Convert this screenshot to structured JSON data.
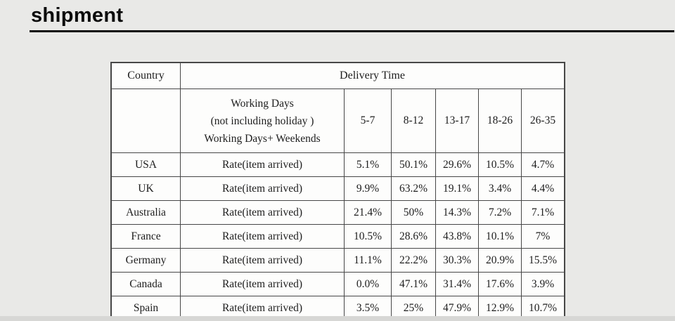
{
  "page": {
    "title": "shipment"
  },
  "table": {
    "col_headers": {
      "country": "Country",
      "delivery_time": "Delivery Time"
    },
    "working_days_lines": [
      "Working Days",
      "(not including holiday )",
      "Working Days+ Weekends"
    ],
    "day_ranges": [
      "5-7",
      "8-12",
      "13-17",
      "18-26",
      "26-35"
    ],
    "rate_label": "Rate(item arrived)",
    "rows": [
      {
        "country": "USA",
        "label": "Rate(item arrived)",
        "rates": [
          "5.1%",
          "50.1%",
          "29.6%",
          "10.5%",
          "4.7%"
        ]
      },
      {
        "country": "UK",
        "label": "Rate(item arrived)",
        "rates": [
          "9.9%",
          "63.2%",
          "19.1%",
          "3.4%",
          "4.4%"
        ]
      },
      {
        "country": "Australia",
        "label": "Rate(item arrived)",
        "rates": [
          "21.4%",
          "50%",
          "14.3%",
          "7.2%",
          "7.1%"
        ]
      },
      {
        "country": "France",
        "label": "Rate(item arrived)",
        "rates": [
          "10.5%",
          "28.6%",
          "43.8%",
          "10.1%",
          "7%"
        ]
      },
      {
        "country": "Germany",
        "label": "Rate(item arrived)",
        "rates": [
          "11.1%",
          "22.2%",
          "30.3%",
          "20.9%",
          "15.5%"
        ]
      },
      {
        "country": "Canada",
        "label": "Rate(item arrived)",
        "rates": [
          "0.0%",
          "47.1%",
          "31.4%",
          "17.6%",
          "3.9%"
        ]
      },
      {
        "country": "Spain",
        "label": "Rate(item arrived)",
        "rates": [
          "3.5%",
          "25%",
          "47.9%",
          "12.9%",
          "10.7%"
        ]
      }
    ]
  }
}
